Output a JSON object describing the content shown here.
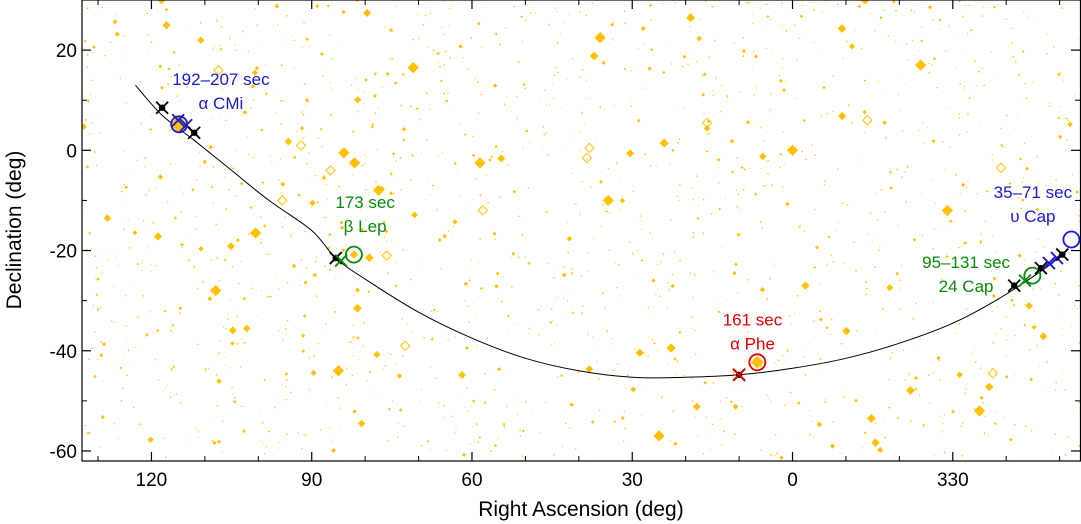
{
  "chart_data": {
    "type": "scatter",
    "title": "",
    "xlabel": "Right Ascension (deg)",
    "ylabel": "Declination (deg)",
    "x_direction": "decreasing",
    "xlim_ra_continuous": [
      133,
      -54
    ],
    "ylim": [
      -62,
      30
    ],
    "x_ticks": [
      {
        "ra": 120,
        "label": "120"
      },
      {
        "ra": 90,
        "label": "90"
      },
      {
        "ra": 60,
        "label": "60"
      },
      {
        "ra": 30,
        "label": "30"
      },
      {
        "ra": 0,
        "label": "0"
      },
      {
        "ra": -30,
        "label": "330"
      }
    ],
    "y_ticks": [
      {
        "dec": 20,
        "label": "20"
      },
      {
        "dec": 0,
        "label": "0"
      },
      {
        "dec": -20,
        "label": "-20"
      },
      {
        "dec": -40,
        "label": "-40"
      },
      {
        "dec": -60,
        "label": "-60"
      }
    ],
    "background_star_color": "#FFC000",
    "curve": {
      "color": "#000000",
      "points": [
        [
          123,
          13
        ],
        [
          118,
          7
        ],
        [
          112,
          2
        ],
        [
          105,
          -4
        ],
        [
          98,
          -10
        ],
        [
          90,
          -16
        ],
        [
          85.5,
          -21.5
        ],
        [
          80,
          -25.7
        ],
        [
          70,
          -32.3
        ],
        [
          60,
          -37.5
        ],
        [
          50,
          -41.5
        ],
        [
          40,
          -44
        ],
        [
          30,
          -45.3
        ],
        [
          20,
          -45.3
        ],
        [
          10,
          -44.8
        ],
        [
          0,
          -43.5
        ],
        [
          -10,
          -41.5
        ],
        [
          -20,
          -38.5
        ],
        [
          -30,
          -34.5
        ],
        [
          -38,
          -30
        ],
        [
          -46,
          -24.5
        ],
        [
          -51,
          -20.5
        ]
      ]
    },
    "track_markers": [
      {
        "ra": 118,
        "dec": 8.5,
        "symbol": "x-dot",
        "color": "#000000"
      },
      {
        "ra": 115,
        "dec": 6,
        "symbol": "x",
        "color": "#1A1ACC"
      },
      {
        "ra": 113.5,
        "dec": 5,
        "symbol": "x",
        "color": "#1A1ACC"
      },
      {
        "ra": 112,
        "dec": 3.5,
        "symbol": "x-dot",
        "color": "#000000"
      },
      {
        "ra": 85.5,
        "dec": -21.5,
        "symbol": "x-dot",
        "color": "#000000"
      },
      {
        "ra": 84.5,
        "dec": -22,
        "symbol": "x",
        "color": "#0A8A0A"
      },
      {
        "ra": 10,
        "dec": -44.8,
        "symbol": "x-dot",
        "color": "#000000"
      },
      {
        "ra": 10,
        "dec": -44.8,
        "symbol": "x",
        "color": "#E00000"
      },
      {
        "ra": -41.5,
        "dec": -27,
        "symbol": "x-dot",
        "color": "#000000"
      },
      {
        "ra": -43.5,
        "dec": -26,
        "symbol": "x",
        "color": "#0A8A0A"
      },
      {
        "ra": -46.5,
        "dec": -23.5,
        "symbol": "x-dot",
        "color": "#000000"
      },
      {
        "ra": -48,
        "dec": -22.5,
        "symbol": "x",
        "color": "#1A1ACC"
      },
      {
        "ra": -49.5,
        "dec": -21.5,
        "symbol": "x",
        "color": "#1A1ACC"
      },
      {
        "ra": -50.5,
        "dec": -20.8,
        "symbol": "x-dot",
        "color": "#000000"
      }
    ],
    "highlighted_stars": [
      {
        "ra": 114.8,
        "dec": 5.2,
        "ring_color": "#1A1ACC",
        "star_size": "large"
      },
      {
        "ra": 82.1,
        "dec": -20.8,
        "ring_color": "#0A8A0A",
        "star_size": "small"
      },
      {
        "ra": 6.6,
        "dec": -42.3,
        "ring_color": "#E00000",
        "star_size": "medium"
      },
      {
        "ra": -44.9,
        "dec": -25.0,
        "ring_color": "#0A8A0A",
        "star_size": "none"
      },
      {
        "ra": -52.2,
        "dec": -17.8,
        "ring_color": "#1A1ACC",
        "star_size": "none"
      }
    ],
    "annotations": [
      {
        "group": "aCMi",
        "line1": "192–207 sec",
        "line2": "α CMi",
        "color": "#1A1ACC",
        "ra": 107,
        "dec": 13
      },
      {
        "group": "bLep",
        "line1": "173 sec",
        "line2": "β Lep",
        "color": "#0A8A0A",
        "ra": 80,
        "dec": -11.5
      },
      {
        "group": "aPhe",
        "line1": "161 sec",
        "line2": "α Phe",
        "color": "#E00000",
        "ra": 7.5,
        "dec": -35
      },
      {
        "group": "24Cap",
        "line1": "95–131 sec",
        "line2": "24 Cap",
        "color": "#0A8A0A",
        "ra": -32.5,
        "dec": -23.5
      },
      {
        "group": "uCap",
        "line1": "35–71 sec",
        "line2": "υ Cap",
        "color": "#1A1ACC",
        "ra": -45,
        "dec": -9.5
      }
    ]
  }
}
